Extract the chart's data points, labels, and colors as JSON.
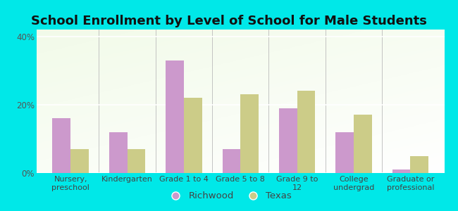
{
  "title": "School Enrollment by Level of School for Male Students",
  "categories": [
    "Nursery,\npreschool",
    "Kindergarten",
    "Grade 1 to 4",
    "Grade 5 to 8",
    "Grade 9 to\n12",
    "College\nundergrad",
    "Graduate or\nprofessional"
  ],
  "richwood": [
    16,
    12,
    33,
    7,
    19,
    12,
    1
  ],
  "texas": [
    7,
    7,
    22,
    23,
    24,
    17,
    5
  ],
  "richwood_color": "#cc99cc",
  "texas_color": "#cccc88",
  "background_outer": "#00e8e8",
  "background_inner_top": "#d8ecd0",
  "background_inner_bot": "#f8fff0",
  "title_fontsize": 13,
  "label_fontsize": 8,
  "tick_fontsize": 8.5,
  "legend_fontsize": 9.5,
  "ylim": [
    0,
    42
  ],
  "yticks": [
    0,
    20,
    40
  ],
  "ytick_labels": [
    "0%",
    "20%",
    "40%"
  ],
  "bar_width": 0.32,
  "legend_labels": [
    "Richwood",
    "Texas"
  ],
  "title_color": "#111111"
}
